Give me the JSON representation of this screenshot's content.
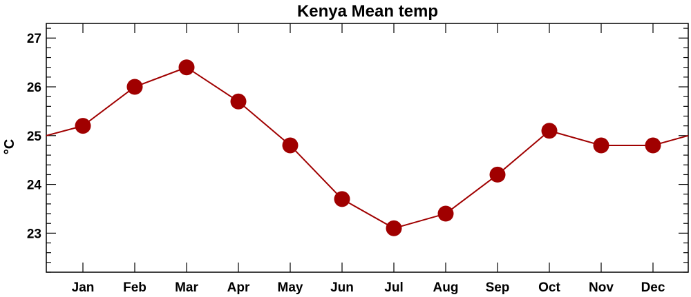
{
  "chart_data": {
    "type": "line",
    "title": "Kenya Mean temp",
    "xlabel": "",
    "ylabel": "°C",
    "categories": [
      "Jan",
      "Feb",
      "Mar",
      "Apr",
      "May",
      "Jun",
      "Jul",
      "Aug",
      "Sep",
      "Oct",
      "Nov",
      "Dec"
    ],
    "series": [
      {
        "values": [
          25.2,
          26.0,
          26.4,
          25.7,
          24.8,
          23.7,
          23.1,
          23.4,
          24.2,
          25.1,
          24.8,
          24.8
        ]
      }
    ],
    "boundary_values": {
      "start": 25.0,
      "end": 25.0
    },
    "ylim": [
      22.2,
      27.3
    ],
    "yticks": [
      23,
      24,
      25,
      26,
      27
    ],
    "grid": false,
    "line_color": "#a00000",
    "marker_color": "#a00000"
  }
}
